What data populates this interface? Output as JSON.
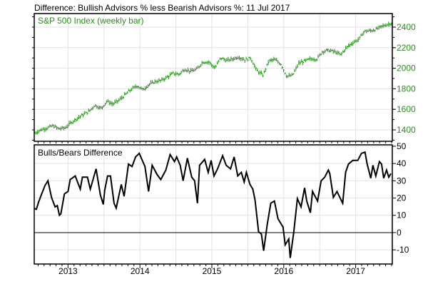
{
  "chart_data": [
    {
      "type": "bar",
      "title": "Difference: Bullish Advisors % less Bearish Advisors %: 11 Jul 2017",
      "panel_label": "S&P 500 Index (weekly bar)",
      "color": "#2e8b22",
      "ylim": [
        1289,
        2532
      ],
      "yticks": [
        1400,
        1600,
        1800,
        2000,
        2200,
        2400
      ],
      "xlim": [
        2012.53,
        2017.51
      ],
      "grid": true,
      "points": [
        [
          2012.54,
          1370
        ],
        [
          2012.62,
          1400
        ],
        [
          2012.71,
          1420
        ],
        [
          2012.79,
          1440
        ],
        [
          2012.87,
          1410
        ],
        [
          2012.96,
          1420
        ],
        [
          2013.04,
          1470
        ],
        [
          2013.12,
          1510
        ],
        [
          2013.21,
          1550
        ],
        [
          2013.29,
          1580
        ],
        [
          2013.37,
          1640
        ],
        [
          2013.46,
          1610
        ],
        [
          2013.54,
          1680
        ],
        [
          2013.62,
          1650
        ],
        [
          2013.71,
          1690
        ],
        [
          2013.79,
          1740
        ],
        [
          2013.87,
          1790
        ],
        [
          2013.96,
          1830
        ],
        [
          2014.04,
          1790
        ],
        [
          2014.12,
          1840
        ],
        [
          2014.21,
          1870
        ],
        [
          2014.29,
          1880
        ],
        [
          2014.37,
          1910
        ],
        [
          2014.46,
          1950
        ],
        [
          2014.54,
          1940
        ],
        [
          2014.62,
          1990
        ],
        [
          2014.71,
          1970
        ],
        [
          2014.79,
          1990
        ],
        [
          2014.87,
          2060
        ],
        [
          2014.96,
          2060
        ],
        [
          2015.04,
          2000
        ],
        [
          2015.12,
          2100
        ],
        [
          2015.21,
          2075
        ],
        [
          2015.29,
          2090
        ],
        [
          2015.37,
          2110
        ],
        [
          2015.46,
          2080
        ],
        [
          2015.54,
          2100
        ],
        [
          2015.62,
          1980
        ],
        [
          2015.71,
          1930
        ],
        [
          2015.79,
          2070
        ],
        [
          2015.87,
          2085
        ],
        [
          2015.96,
          2040
        ],
        [
          2016.04,
          1920
        ],
        [
          2016.12,
          1930
        ],
        [
          2016.21,
          2050
        ],
        [
          2016.29,
          2070
        ],
        [
          2016.37,
          2090
        ],
        [
          2016.46,
          2090
        ],
        [
          2016.54,
          2165
        ],
        [
          2016.62,
          2175
        ],
        [
          2016.71,
          2160
        ],
        [
          2016.79,
          2130
        ],
        [
          2016.87,
          2200
        ],
        [
          2016.96,
          2250
        ],
        [
          2017.04,
          2280
        ],
        [
          2017.12,
          2360
        ],
        [
          2017.21,
          2365
        ],
        [
          2017.29,
          2380
        ],
        [
          2017.37,
          2410
        ],
        [
          2017.46,
          2430
        ],
        [
          2017.5,
          2440
        ]
      ]
    },
    {
      "type": "line",
      "panel_label": "Bulls/Bears Difference",
      "color": "#000000",
      "ylim": [
        -18.2,
        50.8
      ],
      "yticks": [
        -10,
        0,
        10,
        20,
        30,
        40,
        50
      ],
      "xlim": [
        2012.53,
        2017.51
      ],
      "xticks": [
        "2013",
        "2014",
        "2015",
        "2016",
        "2017"
      ],
      "xtick_values": [
        2013,
        2014,
        2015,
        2016,
        2017
      ],
      "grid": true,
      "zero_line": 0,
      "points": [
        [
          2012.53,
          14
        ],
        [
          2012.56,
          13.5
        ],
        [
          2012.59,
          17.6
        ],
        [
          2012.64,
          23.1
        ],
        [
          2012.68,
          27.3
        ],
        [
          2012.72,
          30
        ],
        [
          2012.77,
          20.4
        ],
        [
          2012.82,
          14.9
        ],
        [
          2012.85,
          15.6
        ],
        [
          2012.88,
          10
        ],
        [
          2012.9,
          10.8
        ],
        [
          2012.95,
          22.4
        ],
        [
          2013.0,
          23.8
        ],
        [
          2013.03,
          30.7
        ],
        [
          2013.1,
          32.8
        ],
        [
          2013.17,
          25.2
        ],
        [
          2013.2,
          32.1
        ],
        [
          2013.27,
          32.1
        ],
        [
          2013.31,
          25.2
        ],
        [
          2013.39,
          36.9
        ],
        [
          2013.45,
          21.8
        ],
        [
          2013.49,
          16.3
        ],
        [
          2013.51,
          24.5
        ],
        [
          2013.55,
          32.8
        ],
        [
          2013.59,
          32.8
        ],
        [
          2013.64,
          17
        ],
        [
          2013.67,
          14.2
        ],
        [
          2013.74,
          27.9
        ],
        [
          2013.78,
          21
        ],
        [
          2013.84,
          39.7
        ],
        [
          2013.89,
          38.3
        ],
        [
          2013.94,
          43.8
        ],
        [
          2013.99,
          45.9
        ],
        [
          2014.07,
          38.3
        ],
        [
          2014.12,
          23.8
        ],
        [
          2014.17,
          39
        ],
        [
          2014.24,
          33.5
        ],
        [
          2014.29,
          30.7
        ],
        [
          2014.36,
          36.2
        ],
        [
          2014.42,
          45.2
        ],
        [
          2014.48,
          41.1
        ],
        [
          2014.51,
          43.8
        ],
        [
          2014.56,
          39
        ],
        [
          2014.6,
          30
        ],
        [
          2014.66,
          43.1
        ],
        [
          2014.72,
          32.1
        ],
        [
          2014.76,
          30
        ],
        [
          2014.8,
          17
        ],
        [
          2014.83,
          39
        ],
        [
          2014.9,
          42.4
        ],
        [
          2014.95,
          34.9
        ],
        [
          2014.99,
          41.8
        ],
        [
          2015.03,
          32.8
        ],
        [
          2015.08,
          36.9
        ],
        [
          2015.15,
          44.5
        ],
        [
          2015.2,
          39
        ],
        [
          2015.26,
          36.9
        ],
        [
          2015.31,
          43.8
        ],
        [
          2015.36,
          32.8
        ],
        [
          2015.41,
          34.9
        ],
        [
          2015.45,
          29.3
        ],
        [
          2015.48,
          34.9
        ],
        [
          2015.53,
          27.9
        ],
        [
          2015.57,
          25.2
        ],
        [
          2015.6,
          19
        ],
        [
          2015.65,
          0.5
        ],
        [
          2015.69,
          -0.9
        ],
        [
          2015.72,
          -10.5
        ],
        [
          2015.77,
          4.6
        ],
        [
          2015.82,
          17
        ],
        [
          2015.87,
          18.3
        ],
        [
          2015.92,
          8
        ],
        [
          2015.99,
          3.2
        ],
        [
          2016.02,
          -7.1
        ],
        [
          2016.07,
          -3.7
        ],
        [
          2016.09,
          -14.7
        ],
        [
          2016.14,
          0.5
        ],
        [
          2016.19,
          19.7
        ],
        [
          2016.24,
          14.9
        ],
        [
          2016.29,
          25.9
        ],
        [
          2016.32,
          18.3
        ],
        [
          2016.37,
          11.5
        ],
        [
          2016.4,
          23.8
        ],
        [
          2016.47,
          18.3
        ],
        [
          2016.52,
          30
        ],
        [
          2016.57,
          32.1
        ],
        [
          2016.62,
          36.2
        ],
        [
          2016.64,
          34.2
        ],
        [
          2016.69,
          20.4
        ],
        [
          2016.74,
          23.8
        ],
        [
          2016.78,
          20.4
        ],
        [
          2016.82,
          17
        ],
        [
          2016.86,
          34.9
        ],
        [
          2016.9,
          39.7
        ],
        [
          2016.96,
          41.8
        ],
        [
          2017.03,
          41.8
        ],
        [
          2017.08,
          45.9
        ],
        [
          2017.13,
          46.6
        ],
        [
          2017.16,
          39.7
        ],
        [
          2017.21,
          31.5
        ],
        [
          2017.24,
          39
        ],
        [
          2017.28,
          32.8
        ],
        [
          2017.33,
          41.1
        ],
        [
          2017.36,
          39.7
        ],
        [
          2017.39,
          31.5
        ],
        [
          2017.43,
          36.2
        ],
        [
          2017.46,
          32.1
        ],
        [
          2017.49,
          34.2
        ]
      ]
    }
  ]
}
